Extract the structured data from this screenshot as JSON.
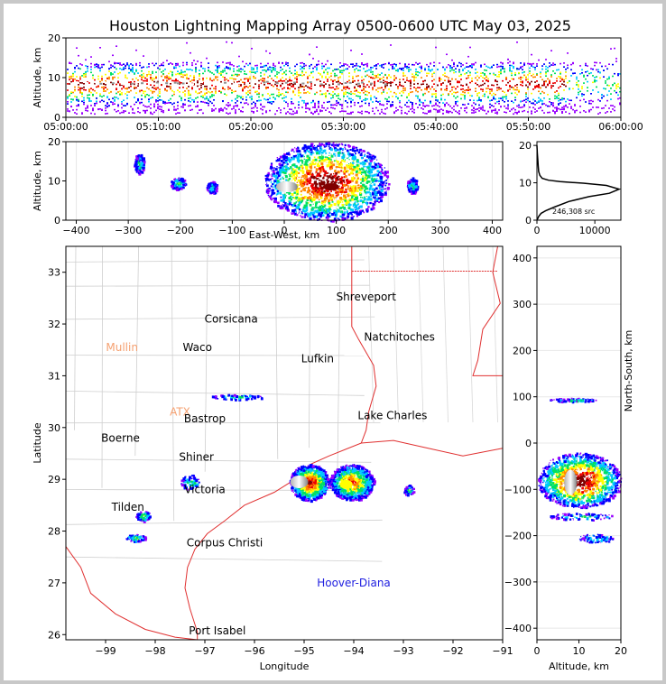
{
  "title": "Houston Lightning Mapping Array 0500-0600 UTC May 03, 2025",
  "chart_data": [
    {
      "panel": "time-height",
      "type": "heatmap",
      "ylabel": "Altitude, km",
      "ylim": [
        0,
        20
      ],
      "yticks": [
        "0",
        "10",
        "20"
      ],
      "xticks": [
        "05:00:00",
        "05:10:00",
        "05:20:00",
        "05:30:00",
        "05:40:00",
        "05:50:00",
        "06:00:00"
      ],
      "xlim_minutes": [
        0,
        60
      ],
      "core_band_km": [
        5,
        12
      ]
    },
    {
      "panel": "east-west-altitude",
      "type": "heatmap",
      "xlabel": "East-West, km",
      "ylabel": "Altitude, km",
      "xlim": [
        -420,
        420
      ],
      "ylim": [
        0,
        20
      ],
      "xticks": [
        "−400",
        "−300",
        "−200",
        "−100",
        "0",
        "100",
        "200",
        "300",
        "400"
      ],
      "yticks": [
        "0",
        "10",
        "20"
      ],
      "clusters": [
        {
          "x": [
            -290,
            -270
          ],
          "z": [
            12,
            17
          ]
        },
        {
          "x": [
            -220,
            -190
          ],
          "z": [
            8,
            11
          ]
        },
        {
          "x": [
            -150,
            -130
          ],
          "z": [
            7,
            10
          ]
        },
        {
          "x": [
            -40,
            200
          ],
          "z": [
            0,
            20
          ]
        },
        {
          "x": [
            235,
            255
          ],
          "z": [
            7,
            11
          ]
        }
      ]
    },
    {
      "panel": "altitude-histogram",
      "type": "line",
      "xlim": [
        0,
        14500
      ],
      "ylim": [
        0,
        21
      ],
      "xticks": [
        "0",
        "10000"
      ],
      "yticks": [
        "0",
        "10",
        "20"
      ],
      "annotation": "246,308 src",
      "x": [
        0,
        150,
        300,
        700,
        1500,
        3000,
        5500,
        9000,
        12500,
        14200,
        12000,
        8000,
        4000,
        2000,
        900,
        500,
        300,
        220,
        150,
        60,
        0
      ],
      "y": [
        0,
        0.5,
        1,
        1.8,
        2.5,
        3.5,
        5,
        6.3,
        7.2,
        8.3,
        9.3,
        9.9,
        10.3,
        10.7,
        11.2,
        12,
        13,
        14.5,
        16,
        18,
        20
      ]
    },
    {
      "panel": "plan-view",
      "type": "scatter",
      "xlabel": "Longitude",
      "ylabel": "Latitude",
      "xlim": [
        -99.8,
        -91
      ],
      "ylim": [
        25.9,
        33.5
      ],
      "xticks": [
        "−99",
        "−98",
        "−97",
        "−96",
        "−95",
        "−94",
        "−93",
        "−92",
        "−91"
      ],
      "yticks": [
        "26",
        "27",
        "28",
        "29",
        "30",
        "31",
        "32",
        "33"
      ],
      "cities": [
        {
          "name": "Shreveport",
          "lon": -93.75,
          "lat": 32.52,
          "color": "#000000"
        },
        {
          "name": "Corsicana",
          "lon": -96.47,
          "lat": 32.1,
          "color": "#000000"
        },
        {
          "name": "Natchitoches",
          "lon": -93.08,
          "lat": 31.75,
          "color": "#000000"
        },
        {
          "name": "Mullin",
          "lon": -98.67,
          "lat": 31.55,
          "color": "#f5a070"
        },
        {
          "name": "Waco",
          "lon": -97.15,
          "lat": 31.55,
          "color": "#000000"
        },
        {
          "name": "Lufkin",
          "lon": -94.73,
          "lat": 31.33,
          "color": "#000000"
        },
        {
          "name": "ATX",
          "lon": -97.5,
          "lat": 30.3,
          "color": "#f5a070"
        },
        {
          "name": "Bastrop",
          "lon": -97.0,
          "lat": 30.17,
          "color": "#000000"
        },
        {
          "name": "Lake Charles",
          "lon": -93.22,
          "lat": 30.23,
          "color": "#000000"
        },
        {
          "name": "Boerne",
          "lon": -98.7,
          "lat": 29.8,
          "color": "#000000"
        },
        {
          "name": "Shiner",
          "lon": -97.17,
          "lat": 29.43,
          "color": "#000000"
        },
        {
          "name": "Victoria",
          "lon": -97.0,
          "lat": 28.8,
          "color": "#000000"
        },
        {
          "name": "Tilden",
          "lon": -98.55,
          "lat": 28.46,
          "color": "#000000"
        },
        {
          "name": "Corpus Christi",
          "lon": -96.6,
          "lat": 27.77,
          "color": "#000000"
        },
        {
          "name": "Hoover-Diana",
          "lon": -94.0,
          "lat": 27.0,
          "color": "#2020e0"
        },
        {
          "name": "Port Isabel",
          "lon": -96.75,
          "lat": 26.07,
          "color": "#000000"
        }
      ],
      "clusters": [
        {
          "lon": [
            -95.3,
            -94.5
          ],
          "lat": [
            28.6,
            29.3
          ],
          "intensity": 5
        },
        {
          "lon": [
            -94.5,
            -93.6
          ],
          "lat": [
            28.6,
            29.3
          ],
          "intensity": 4
        },
        {
          "lon": [
            -93.0,
            -92.8
          ],
          "lat": [
            28.7,
            28.9
          ],
          "intensity": 1
        },
        {
          "lon": [
            -98.4,
            -98.1
          ],
          "lat": [
            28.2,
            28.4
          ],
          "intensity": 2
        },
        {
          "lon": [
            -98.6,
            -98.2
          ],
          "lat": [
            27.8,
            27.95
          ],
          "intensity": 2
        },
        {
          "lon": [
            -96.9,
            -95.8
          ],
          "lat": [
            30.55,
            30.65
          ],
          "intensity": 1
        },
        {
          "lon": [
            -97.5,
            -97.1
          ],
          "lat": [
            28.8,
            29.1
          ],
          "intensity": 1
        }
      ]
    },
    {
      "panel": "north-south-altitude",
      "type": "heatmap",
      "xlabel": "Altitude, km",
      "ylabel": "North-South, km",
      "xlim": [
        0,
        20
      ],
      "ylim": [
        -425,
        425
      ],
      "xticks": [
        "0",
        "10",
        "20"
      ],
      "yticks": [
        "−400",
        "−300",
        "−200",
        "−100",
        "0",
        "100",
        "200",
        "300",
        "400"
      ],
      "clusters": [
        {
          "z": [
            0,
            20
          ],
          "y": [
            -140,
            -20
          ]
        },
        {
          "z": [
            3,
            18
          ],
          "y": [
            -165,
            -150
          ]
        },
        {
          "z": [
            10,
            18
          ],
          "y": [
            -215,
            -195
          ]
        },
        {
          "z": [
            3,
            14
          ],
          "y": [
            90,
            98
          ]
        }
      ]
    }
  ]
}
